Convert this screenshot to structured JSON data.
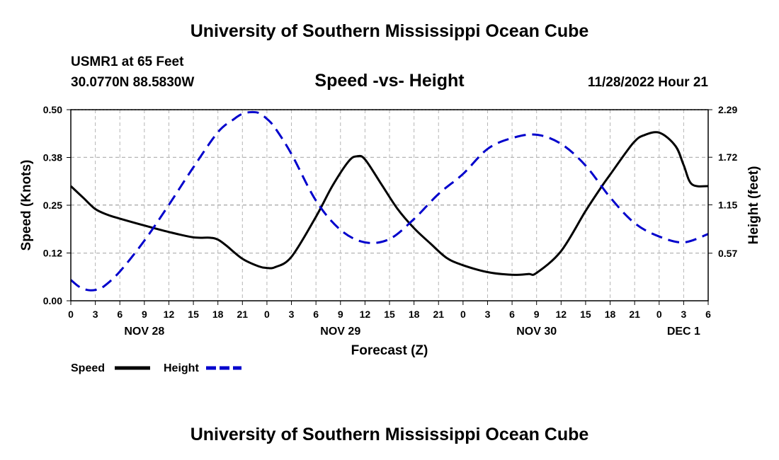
{
  "header": {
    "title": "University of Southern Mississippi Ocean Cube",
    "station": "USMR1 at 65 Feet",
    "coords": "30.0770N  88.5830W",
    "subtitle": "Speed -vs- Height",
    "datetime": "11/28/2022 Hour 21"
  },
  "footer": {
    "title": "University of Southern Mississippi Ocean Cube"
  },
  "chart_data": {
    "type": "line",
    "xlabel": "Forecast (Z)",
    "ylabel": "Speed (Knots)",
    "y2label": "Height (feet)",
    "xlim": [
      0,
      78
    ],
    "ylim": [
      0,
      0.5
    ],
    "y2lim": [
      0,
      2.29
    ],
    "x_ticks": [
      0,
      3,
      6,
      9,
      12,
      15,
      18,
      21,
      24,
      27,
      30,
      33,
      36,
      39,
      42,
      45,
      48,
      51,
      54,
      57,
      60,
      63,
      66,
      69,
      72,
      75,
      78
    ],
    "x_tick_labels": [
      "0",
      "3",
      "6",
      "9",
      "12",
      "15",
      "18",
      "21",
      "0",
      "3",
      "6",
      "9",
      "12",
      "15",
      "18",
      "21",
      "0",
      "3",
      "6",
      "9",
      "12",
      "15",
      "18",
      "21",
      "0",
      "3",
      "6"
    ],
    "y_ticks": [
      0.0,
      0.125,
      0.25,
      0.375,
      0.5
    ],
    "y_tick_labels": [
      "0.00",
      "0.12",
      "0.25",
      "0.38",
      "0.50"
    ],
    "y2_ticks": [
      0.57,
      1.15,
      1.72,
      2.29
    ],
    "y2_tick_labels": [
      "0.57",
      "1.15",
      "1.72",
      "2.29"
    ],
    "day_labels": [
      {
        "x": 9,
        "label": "NOV 28"
      },
      {
        "x": 33,
        "label": "NOV 29"
      },
      {
        "x": 57,
        "label": "NOV 30"
      },
      {
        "x": 75,
        "label": "DEC 1"
      }
    ],
    "series": [
      {
        "name": "Speed",
        "axis": "left",
        "color": "#000000",
        "dash": "solid",
        "x": [
          0,
          1.5,
          3,
          4.5,
          6,
          9,
          12,
          15,
          17,
          18,
          19,
          21,
          23,
          24,
          25,
          27,
          30,
          32,
          34,
          35,
          36,
          38,
          40,
          42,
          44,
          46,
          48,
          51,
          54,
          56,
          57,
          60,
          63,
          65,
          66,
          68,
          69,
          70,
          72,
          74,
          75,
          76,
          78
        ],
        "values": [
          0.3,
          0.27,
          0.24,
          0.225,
          0.215,
          0.197,
          0.18,
          0.166,
          0.165,
          0.16,
          0.145,
          0.11,
          0.09,
          0.086,
          0.088,
          0.115,
          0.22,
          0.3,
          0.365,
          0.378,
          0.37,
          0.305,
          0.24,
          0.19,
          0.15,
          0.112,
          0.093,
          0.075,
          0.068,
          0.07,
          0.073,
          0.13,
          0.235,
          0.3,
          0.33,
          0.39,
          0.417,
          0.432,
          0.44,
          0.405,
          0.355,
          0.305,
          0.3
        ]
      },
      {
        "name": "Height",
        "axis": "right",
        "color": "#0000cc",
        "dash": "dashed",
        "x": [
          0,
          1,
          2,
          3,
          4,
          6,
          9,
          12,
          15,
          18,
          20,
          21,
          22,
          23,
          24,
          25,
          27,
          30,
          33,
          36,
          39,
          42,
          45,
          48,
          51,
          54,
          57,
          60,
          63,
          66,
          69,
          72,
          75,
          78
        ],
        "values": [
          0.25,
          0.17,
          0.13,
          0.13,
          0.17,
          0.35,
          0.72,
          1.15,
          1.6,
          2.02,
          2.18,
          2.24,
          2.26,
          2.25,
          2.18,
          2.07,
          1.76,
          1.2,
          0.85,
          0.7,
          0.74,
          0.98,
          1.28,
          1.52,
          1.82,
          1.95,
          1.99,
          1.88,
          1.62,
          1.24,
          0.93,
          0.77,
          0.7,
          0.8
        ]
      }
    ],
    "legend": [
      {
        "label": "Speed",
        "color": "#000000",
        "dash": "solid"
      },
      {
        "label": "Height",
        "color": "#0000cc",
        "dash": "dashed"
      }
    ]
  }
}
